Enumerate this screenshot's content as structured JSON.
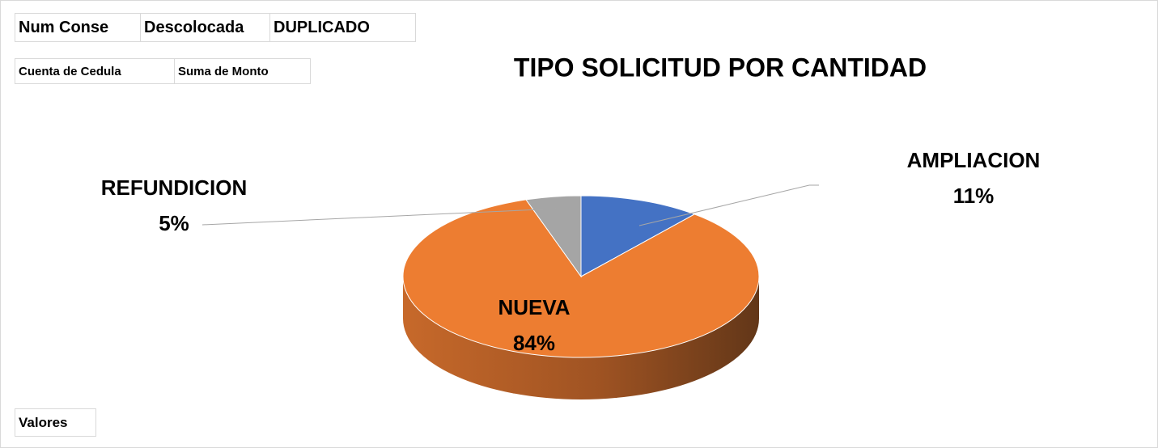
{
  "pivot_fields": {
    "filters": [
      "Num Conse",
      "Descolocada",
      "DUPLICADO"
    ],
    "values": [
      "Cuenta de Cedula",
      "Suma de Monto"
    ],
    "values_area": "Valores"
  },
  "chart_data": {
    "type": "pie",
    "title": "TIPO SOLICITUD POR CANTIDAD",
    "categories": [
      "AMPLIACION",
      "NUEVA",
      "REFUNDICION"
    ],
    "values": [
      11,
      84,
      5
    ],
    "value_labels": [
      "11%",
      "84%",
      "5%"
    ],
    "colors": [
      "#4472c4",
      "#ed7d31",
      "#a5a5a5"
    ],
    "style": "3d"
  }
}
